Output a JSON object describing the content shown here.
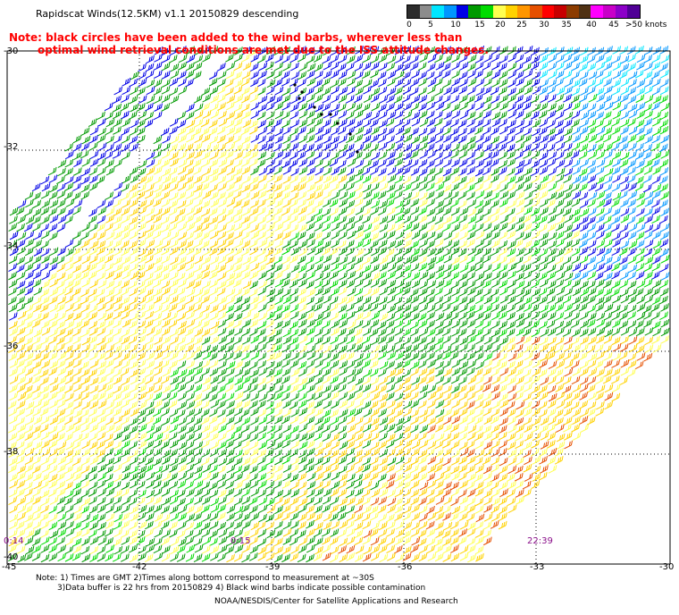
{
  "title": "Rapidscat Winds(12.5KM) v1.1 20150829 descending",
  "note_line1": "Note: black circles have been added to the wind barbs, wherever less than",
  "note_line2": "optimal wind retrieval conditions are met due to the ISS attitude changes.",
  "legend": {
    "labels": [
      "0",
      "5",
      "10",
      "15",
      "20",
      "25",
      "30",
      "35",
      "40",
      "45",
      ">50 knots"
    ],
    "colors": [
      "#2c2c2c",
      "#8c8c8c",
      "#00e6ff",
      "#0096ff",
      "#0000e6",
      "#009a00",
      "#00dc00",
      "#ffff50",
      "#ffd200",
      "#ff9600",
      "#e65000",
      "#ff0000",
      "#c80000",
      "#8c3c00",
      "#503214",
      "#ff00ff",
      "#c800c8",
      "#8c00c8",
      "#500096"
    ]
  },
  "lat_labels": [
    "-30",
    "-32",
    "-34",
    "-36",
    "-38",
    "-40"
  ],
  "lon_labels": [
    "-45",
    "-42",
    "-39",
    "-36",
    "-33",
    "-30"
  ],
  "time_labels": [
    "0:14",
    "0:15",
    "22:39"
  ],
  "footer": {
    "line1": "Note: 1) Times are GMT 2)Times along bottom correspond to measurement at ~30S",
    "line2": "3)Data buffer is 22 hrs from 20150829 4) Black wind barbs indicate possible contamination",
    "credit": "NOAA/NESDIS/Center for Satellite Applications and Research"
  }
}
